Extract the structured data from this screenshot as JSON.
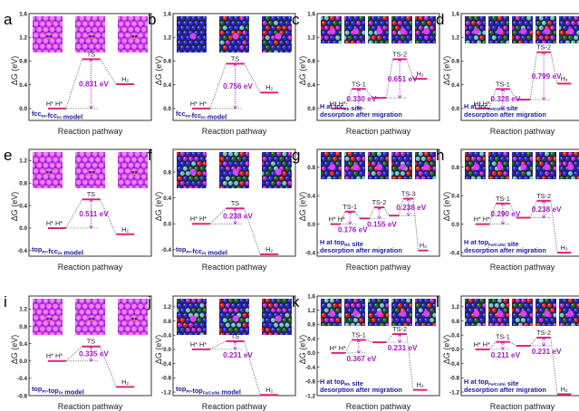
{
  "figure": {
    "xlabel": "Reaction pathway",
    "ylabel": "ΔG (eV)",
    "colors": {
      "level": "#e0247a",
      "barrier_text": "#a020c0",
      "model_text": "#1a1aa0",
      "axis": "#333333",
      "dotted": "#555555",
      "pt_surface": "#d040e8",
      "pt_atom_bright": "#f080ff",
      "pt_hollow": "#6a10b0"
    }
  },
  "chart_data": [
    {
      "panel": "a",
      "type": "line",
      "ylim": [
        -0.2,
        1.6
      ],
      "yticks": [
        "0.0",
        "0.4",
        "0.8",
        "1.2",
        "1.6"
      ],
      "ytick_values": [
        0.0,
        0.4,
        0.8,
        1.2,
        1.6
      ],
      "inset_style": "pt",
      "inset_count": 3,
      "inset_labels": [
        "H* H*",
        "TS",
        "H2"
      ],
      "levels": [
        {
          "label": "H* H*",
          "value": 0.0,
          "pos": 0
        },
        {
          "label": "TS",
          "value": 0.831,
          "pos": 1
        },
        {
          "label": "H₂",
          "value": 0.41,
          "pos": 2
        }
      ],
      "barriers": [
        {
          "text": "0.831 eV",
          "from": 0.0,
          "to": 0.831,
          "at": 1
        }
      ],
      "model_lines": [
        "fcc",
        "Pt",
        "-fcc",
        "Pt",
        " model"
      ],
      "model": "fccPt-fccPt model"
    },
    {
      "panel": "b",
      "type": "line",
      "ylim": [
        -0.2,
        1.6
      ],
      "yticks": [
        "0.0",
        "0.4",
        "0.8",
        "1.2",
        "1.6"
      ],
      "ytick_values": [
        0.0,
        0.4,
        0.8,
        1.2,
        1.6
      ],
      "inset_style": "hea",
      "inset_count": 3,
      "levels": [
        {
          "label": "H* H*",
          "value": 0.0,
          "pos": 0
        },
        {
          "label": "TS",
          "value": 0.756,
          "pos": 1
        },
        {
          "label": "H₂",
          "value": 0.27,
          "pos": 2
        }
      ],
      "barriers": [
        {
          "text": "0.756 eV",
          "from": 0.0,
          "to": 0.756,
          "at": 1
        }
      ],
      "model": "fccPt-fccPt model"
    },
    {
      "panel": "c",
      "type": "line",
      "ylim": [
        -0.2,
        1.6
      ],
      "yticks": [
        "0.0",
        "0.4",
        "0.8",
        "1.2",
        "1.6"
      ],
      "ytick_values": [
        0.0,
        0.4,
        0.8,
        1.2,
        1.6
      ],
      "inset_style": "hea",
      "inset_count": 5,
      "levels": [
        {
          "label": "H* H*",
          "value": 0.0,
          "pos": 0
        },
        {
          "label": "TS-1",
          "value": 0.33,
          "pos": 1
        },
        {
          "label": "",
          "value": 0.18,
          "pos": 2
        },
        {
          "label": "TS-2",
          "value": 0.831,
          "pos": 3
        },
        {
          "label": "H₂",
          "value": 0.5,
          "pos": 4
        }
      ],
      "barriers": [
        {
          "text": "0.330 eV",
          "from": 0.0,
          "to": 0.33,
          "at": 1
        },
        {
          "text": "0.651 eV",
          "from": 0.18,
          "to": 0.831,
          "at": 3
        }
      ],
      "model": "H at fccRh site desorption after migration"
    },
    {
      "panel": "d",
      "type": "line",
      "ylim": [
        -0.2,
        1.6
      ],
      "yticks": [
        "0.0",
        "0.4",
        "0.8",
        "1.2",
        "1.6"
      ],
      "ytick_values": [
        0.0,
        0.4,
        0.8,
        1.2,
        1.6
      ],
      "inset_style": "hea",
      "inset_count": 5,
      "levels": [
        {
          "label": "H* H*",
          "value": 0.0,
          "pos": 0
        },
        {
          "label": "TS-1",
          "value": 0.328,
          "pos": 1
        },
        {
          "label": "",
          "value": 0.15,
          "pos": 2
        },
        {
          "label": "TS-2",
          "value": 0.949,
          "pos": 3
        },
        {
          "label": "H₂",
          "value": 0.42,
          "pos": 4
        }
      ],
      "barriers": [
        {
          "text": "0.328 eV",
          "from": 0.0,
          "to": 0.328,
          "at": 1
        },
        {
          "text": "0.799 eV",
          "from": 0.15,
          "to": 0.949,
          "at": 3
        }
      ],
      "model": "H at fccFe/Co/Ni site desorption after migration"
    },
    {
      "panel": "e",
      "type": "line",
      "ylim": [
        -0.5,
        1.4
      ],
      "yticks": [
        "-0.4",
        "0.0",
        "0.4",
        "0.8",
        "1.2"
      ],
      "ytick_values": [
        -0.4,
        0.0,
        0.4,
        0.8,
        1.2
      ],
      "inset_style": "pt",
      "inset_count": 3,
      "levels": [
        {
          "label": "H* H*",
          "value": 0.0,
          "pos": 0
        },
        {
          "label": "TS",
          "value": 0.511,
          "pos": 1
        },
        {
          "label": "H₂",
          "value": -0.11,
          "pos": 2
        }
      ],
      "barriers": [
        {
          "text": "0.511 eV",
          "from": 0.0,
          "to": 0.511,
          "at": 1
        }
      ],
      "model": "topPt-fccPt model"
    },
    {
      "panel": "f",
      "type": "line",
      "ylim": [
        -0.5,
        1.15
      ],
      "yticks": [
        "-0.4",
        "0.0",
        "0.4",
        "0.8"
      ],
      "ytick_values": [
        -0.4,
        0.0,
        0.4,
        0.8
      ],
      "inset_style": "hea",
      "inset_count": 3,
      "levels": [
        {
          "label": "H* H*",
          "value": 0.0,
          "pos": 0
        },
        {
          "label": "TS",
          "value": 0.238,
          "pos": 1
        },
        {
          "label": "H₂",
          "value": -0.47,
          "pos": 2
        }
      ],
      "barriers": [
        {
          "text": "0.238 eV",
          "from": 0.0,
          "to": 0.238,
          "at": 1
        }
      ],
      "model": "topPt-fccPt model"
    },
    {
      "panel": "g",
      "type": "line",
      "ylim": [
        -0.45,
        1.05
      ],
      "yticks": [
        "-0.4",
        "0.0",
        "0.4",
        "0.8"
      ],
      "ytick_values": [
        -0.4,
        0.0,
        0.4,
        0.8
      ],
      "inset_style": "hea",
      "inset_count": 5,
      "levels": [
        {
          "label": "H* H*",
          "value": 0.0,
          "pos": 0
        },
        {
          "label": "TS-1",
          "value": 0.176,
          "pos": 1
        },
        {
          "label": "",
          "value": 0.08,
          "pos": 2
        },
        {
          "label": "TS-2",
          "value": 0.235,
          "pos": 3
        },
        {
          "label": "",
          "value": 0.12,
          "pos": 4
        },
        {
          "label": "TS-3",
          "value": 0.358,
          "pos": 5
        },
        {
          "label": "H₂",
          "value": -0.37,
          "pos": 6
        }
      ],
      "barriers": [
        {
          "text": "0.176 eV",
          "from": 0.0,
          "to": 0.176,
          "at": 1
        },
        {
          "text": "0.155 eV",
          "from": 0.08,
          "to": 0.235,
          "at": 3
        },
        {
          "text": "0.238 eV",
          "from": 0.12,
          "to": 0.358,
          "at": 5
        }
      ],
      "model": "H at topRh site desorption after migration"
    },
    {
      "panel": "h",
      "type": "line",
      "ylim": [
        -0.45,
        1.05
      ],
      "yticks": [
        "-0.4",
        "0.0",
        "0.4",
        "0.8"
      ],
      "ytick_values": [
        -0.4,
        0.0,
        0.4,
        0.8
      ],
      "inset_style": "hea",
      "inset_count": 5,
      "levels": [
        {
          "label": "H* H*",
          "value": 0.0,
          "pos": 0
        },
        {
          "label": "TS-1",
          "value": 0.29,
          "pos": 1
        },
        {
          "label": "",
          "value": 0.09,
          "pos": 2
        },
        {
          "label": "TS-2",
          "value": 0.328,
          "pos": 3
        },
        {
          "label": "H₂",
          "value": -0.4,
          "pos": 4
        }
      ],
      "barriers": [
        {
          "text": "0.290 eV",
          "from": 0.0,
          "to": 0.29,
          "at": 1
        },
        {
          "text": "0.238 eV",
          "from": 0.09,
          "to": 0.328,
          "at": 3
        }
      ],
      "model": "H at topFe/Co/Ni site desorption after migration"
    },
    {
      "panel": "i",
      "type": "line",
      "ylim": [
        -0.8,
        1.5
      ],
      "yticks": [
        "-0.8",
        "-0.4",
        "0.0",
        "0.4",
        "0.8",
        "1.2"
      ],
      "ytick_values": [
        -0.8,
        -0.4,
        0.0,
        0.4,
        0.8,
        1.2
      ],
      "inset_style": "pt",
      "inset_count": 3,
      "levels": [
        {
          "label": "H* H*",
          "value": 0.0,
          "pos": 0
        },
        {
          "label": "TS",
          "value": 0.335,
          "pos": 1
        },
        {
          "label": "H₂",
          "value": -0.6,
          "pos": 2
        }
      ],
      "barriers": [
        {
          "text": "0.335 eV",
          "from": 0.0,
          "to": 0.335,
          "at": 1
        }
      ],
      "model": "topPt-topPt model"
    },
    {
      "panel": "j",
      "type": "line",
      "ylim": [
        -1.3,
        1.5
      ],
      "yticks": [
        "-1.2",
        "-0.8",
        "-0.4",
        "0.0",
        "0.4",
        "0.8",
        "1.2"
      ],
      "ytick_values": [
        -1.2,
        -0.8,
        -0.4,
        0.0,
        0.4,
        0.8,
        1.2
      ],
      "inset_style": "hea",
      "inset_count": 3,
      "levels": [
        {
          "label": "H* H*",
          "value": 0.0,
          "pos": 0
        },
        {
          "label": "TS",
          "value": 0.231,
          "pos": 1
        },
        {
          "label": "H₂",
          "value": -1.28,
          "pos": 2
        }
      ],
      "barriers": [
        {
          "text": "0.231 eV",
          "from": 0.0,
          "to": 0.231,
          "at": 1
        }
      ],
      "model": "topPt-topFe/Co/Ni model"
    },
    {
      "panel": "k",
      "type": "line",
      "ylim": [
        -1.2,
        1.6
      ],
      "yticks": [
        "-1.2",
        "-0.8",
        "-0.4",
        "0.0",
        "0.4",
        "0.8",
        "1.2",
        "1.6"
      ],
      "ytick_values": [
        -1.2,
        -0.8,
        -0.4,
        0.0,
        0.4,
        0.8,
        1.2,
        1.6
      ],
      "inset_style": "hea",
      "inset_count": 5,
      "levels": [
        {
          "label": "H* H*",
          "value": 0.0,
          "pos": 0
        },
        {
          "label": "TS-1",
          "value": 0.367,
          "pos": 1
        },
        {
          "label": "",
          "value": 0.3,
          "pos": 2
        },
        {
          "label": "TS-2",
          "value": 0.531,
          "pos": 3
        },
        {
          "label": "H₂",
          "value": -1.04,
          "pos": 4
        }
      ],
      "barriers": [
        {
          "text": "0.367 eV",
          "from": 0.0,
          "to": 0.367,
          "at": 1
        },
        {
          "text": "0.231 eV",
          "from": 0.3,
          "to": 0.531,
          "at": 3
        }
      ],
      "model": "H at topRh site desorption after migration"
    },
    {
      "panel": "l",
      "type": "line",
      "ylim": [
        -1.3,
        1.5
      ],
      "yticks": [
        "-1.2",
        "-0.8",
        "-0.4",
        "0.0",
        "0.4",
        "0.8",
        "1.2"
      ],
      "ytick_values": [
        -1.2,
        -0.8,
        -0.4,
        0.0,
        0.4,
        0.8,
        1.2
      ],
      "inset_style": "hea",
      "inset_count": 5,
      "levels": [
        {
          "label": "H* H*",
          "value": 0.0,
          "pos": 0
        },
        {
          "label": "TS-1",
          "value": 0.211,
          "pos": 1
        },
        {
          "label": "",
          "value": 0.1,
          "pos": 2
        },
        {
          "label": "TS-2",
          "value": 0.331,
          "pos": 3
        },
        {
          "label": "H₂",
          "value": -1.26,
          "pos": 4
        }
      ],
      "barriers": [
        {
          "text": "0.211 eV",
          "from": 0.0,
          "to": 0.211,
          "at": 1
        },
        {
          "text": "0.231 eV",
          "from": 0.1,
          "to": 0.331,
          "at": 3
        }
      ],
      "model": "H at topFe/Co/Ni site desorption after migration"
    }
  ]
}
